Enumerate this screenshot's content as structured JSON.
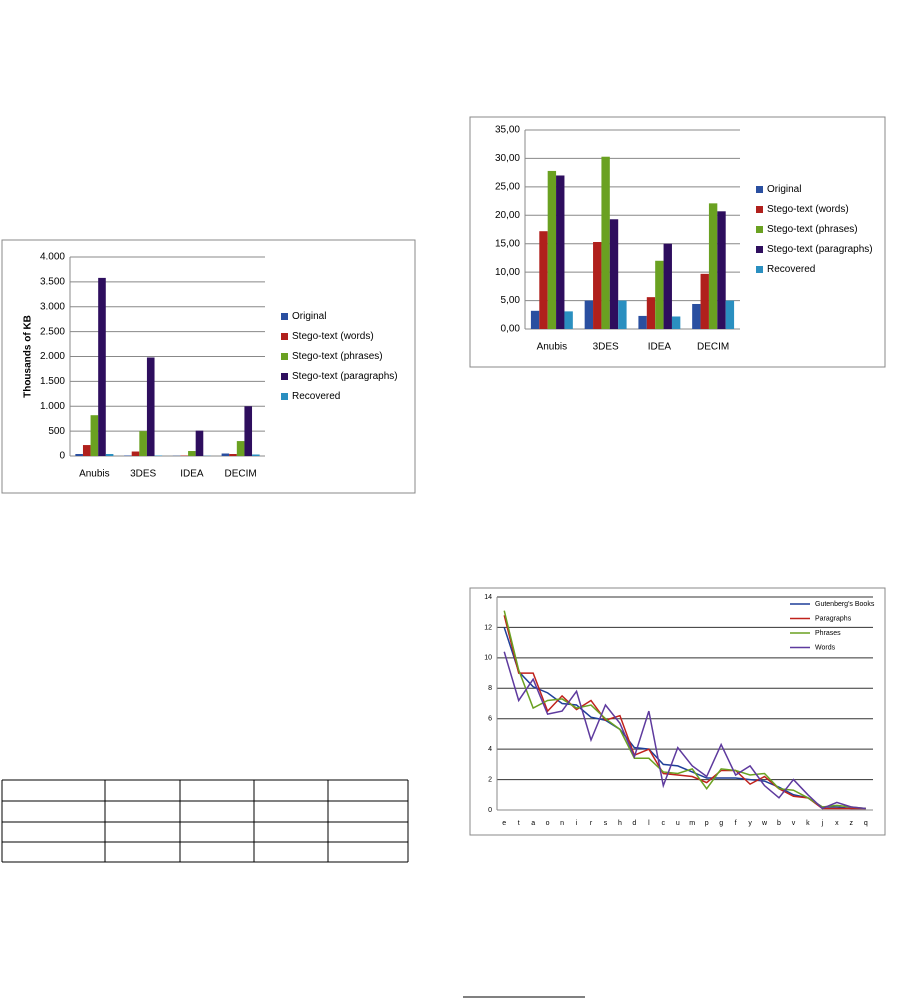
{
  "chart_data": [
    {
      "type": "bar",
      "ylabel": "Thousands of KB",
      "legend": "right",
      "grid": true,
      "categories": [
        "Anubis",
        "3DES",
        "IDEA",
        "DECIM"
      ],
      "ylim": [
        0,
        4000
      ],
      "yticks": [
        0,
        {
          "value": 500,
          "label": "500"
        },
        {
          "value": 1000,
          "label": "1.000"
        },
        {
          "value": 1500,
          "label": "1.500"
        },
        {
          "value": 2000,
          "label": "2.000"
        },
        {
          "value": 2500,
          "label": "2.500"
        },
        {
          "value": 3000,
          "label": "3.000"
        },
        {
          "value": 3500,
          "label": "3.500"
        },
        {
          "value": 4000,
          "label": "4.000"
        }
      ],
      "series": [
        {
          "name": "Original",
          "color": "#2a4fa0",
          "values": [
            40,
            10,
            5,
            50
          ]
        },
        {
          "name": "Stego-text (words)",
          "color": "#b0201c",
          "values": [
            220,
            90,
            10,
            40
          ]
        },
        {
          "name": "Stego-text (phrases)",
          "color": "#6aa121",
          "values": [
            820,
            500,
            100,
            300
          ]
        },
        {
          "name": "Stego-text (paragraphs)",
          "color": "#2e0e5e",
          "values": [
            3580,
            1980,
            510,
            1000
          ]
        },
        {
          "name": "Recovered",
          "color": "#2a8fc0",
          "values": [
            40,
            10,
            5,
            30
          ]
        }
      ]
    },
    {
      "type": "bar",
      "legend": "right",
      "grid": true,
      "categories": [
        "Anubis",
        "3DES",
        "IDEA",
        "DECIM"
      ],
      "ylim": [
        0,
        35
      ],
      "yticks": [
        {
          "value": 0,
          "label": "0,00"
        },
        {
          "value": 5,
          "label": "5,00"
        },
        {
          "value": 10,
          "label": "10,00"
        },
        {
          "value": 15,
          "label": "15,00"
        },
        {
          "value": 20,
          "label": "20,00"
        },
        {
          "value": 25,
          "label": "25,00"
        },
        {
          "value": 30,
          "label": "30,00"
        },
        {
          "value": 35,
          "label": "35,00"
        }
      ],
      "series": [
        {
          "name": "Original",
          "color": "#2a4fa0",
          "values": [
            3.2,
            5.0,
            2.3,
            4.4
          ]
        },
        {
          "name": "Stego-text (words)",
          "color": "#b0201c",
          "values": [
            17.2,
            15.3,
            5.6,
            9.7
          ]
        },
        {
          "name": "Stego-text (phrases)",
          "color": "#6aa121",
          "values": [
            27.8,
            30.3,
            12.0,
            22.1
          ]
        },
        {
          "name": "Stego-text (paragraphs)",
          "color": "#2e0e5e",
          "values": [
            27.0,
            19.3,
            15.0,
            20.7
          ]
        },
        {
          "name": "Recovered",
          "color": "#2a8fc0",
          "values": [
            3.1,
            5.0,
            2.2,
            5.0
          ]
        }
      ]
    },
    {
      "type": "line",
      "legend": "upper right",
      "grid": true,
      "categories": [
        "e",
        "t",
        "a",
        "o",
        "n",
        "i",
        "r",
        "s",
        "h",
        "d",
        "l",
        "c",
        "u",
        "m",
        "p",
        "g",
        "f",
        "y",
        "w",
        "b",
        "v",
        "k",
        "j",
        "x",
        "z",
        "q"
      ],
      "ylim": [
        0,
        14
      ],
      "yticks": [
        0,
        2,
        4,
        6,
        8,
        10,
        12,
        14
      ],
      "series": [
        {
          "name": "Gutenberg's Books",
          "color": "#1f3f99",
          "values": [
            12.0,
            9.1,
            8.1,
            7.7,
            7.0,
            6.9,
            6.1,
            5.9,
            5.3,
            4.1,
            4.0,
            3.0,
            2.9,
            2.5,
            2.1,
            2.1,
            2.1,
            2.0,
            1.9,
            1.5,
            1.0,
            0.8,
            0.2,
            0.2,
            0.1,
            0.1
          ]
        },
        {
          "name": "Paragraphs",
          "color": "#c0221c",
          "values": [
            12.8,
            9.0,
            9.0,
            6.5,
            7.5,
            6.6,
            7.2,
            5.9,
            6.2,
            3.6,
            4.0,
            2.4,
            2.3,
            2.2,
            1.8,
            2.6,
            2.6,
            1.7,
            2.2,
            1.4,
            0.9,
            0.8,
            0.1,
            0.1,
            0.1,
            0.1
          ]
        },
        {
          "name": "Phrases",
          "color": "#6aa121",
          "values": [
            13.1,
            9.2,
            6.7,
            7.2,
            7.3,
            6.7,
            6.9,
            6.0,
            5.3,
            3.4,
            3.4,
            2.5,
            2.4,
            2.7,
            1.4,
            2.7,
            2.6,
            2.3,
            2.4,
            1.4,
            1.3,
            0.8,
            0.2,
            0.3,
            0.2,
            0.1
          ]
        },
        {
          "name": "Words",
          "color": "#5e3a9e",
          "values": [
            10.4,
            7.2,
            8.6,
            6.3,
            6.5,
            7.8,
            4.6,
            6.9,
            5.7,
            3.5,
            6.5,
            1.6,
            4.1,
            2.9,
            2.2,
            4.3,
            2.3,
            2.9,
            1.6,
            0.8,
            2.0,
            1.0,
            0.1,
            0.5,
            0.2,
            0.1
          ]
        }
      ]
    }
  ]
}
